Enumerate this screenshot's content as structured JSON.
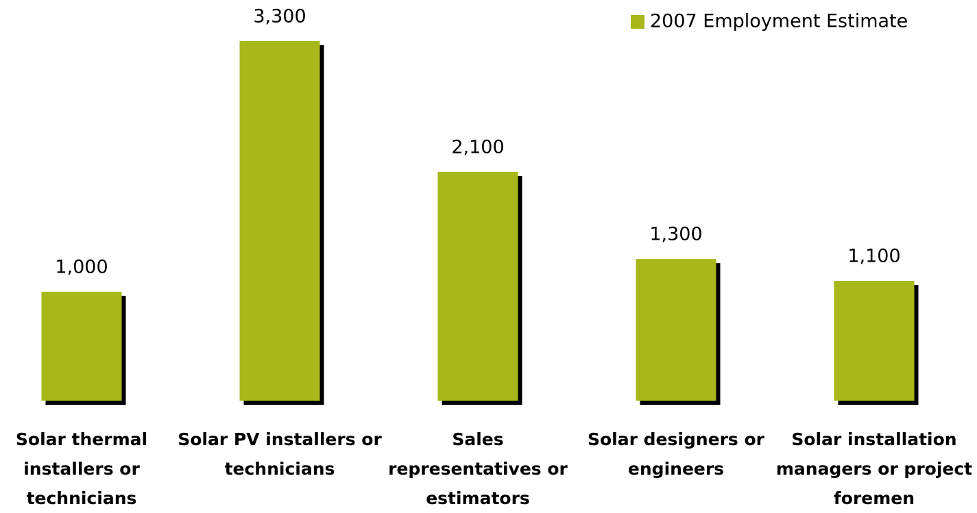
{
  "chart_data": {
    "type": "bar",
    "categories": [
      "Solar thermal installers or technicians",
      "Solar PV installers or technicians",
      "Sales representatives or estimators",
      "Solar designers or engineers",
      "Solar installation managers or project foremen"
    ],
    "series": [
      {
        "name": "2007 Employment Estimate",
        "color": "#a8b81a",
        "values": [
          1000,
          3300,
          2100,
          1300,
          1100
        ],
        "value_labels": [
          "1,000",
          "3,300",
          "2,100",
          "1,300",
          "1,100"
        ]
      }
    ],
    "legend": "top-right"
  }
}
